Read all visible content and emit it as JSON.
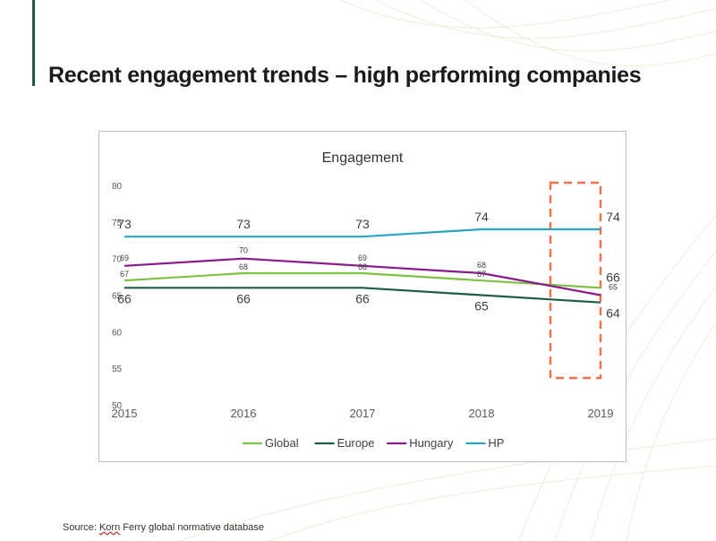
{
  "slide": {
    "title": "Recent engagement trends – high performing companies",
    "source_prefix": "Source: ",
    "source_name": "Korn",
    "source_rest": " Ferry global normative database"
  },
  "colors": {
    "accent": "#1f5a3a",
    "Global": "#7dc242",
    "Europe": "#1e5c4a",
    "Hungary": "#8b1a8b",
    "HP": "#2aa6c4",
    "highlight": "#f4704a"
  },
  "chart_data": {
    "type": "line",
    "title": "Engagement",
    "categories": [
      "2015",
      "2016",
      "2017",
      "2018",
      "2019"
    ],
    "ylim": [
      50,
      80
    ],
    "yticks": [
      50,
      55,
      60,
      65,
      70,
      75,
      80
    ],
    "grid": false,
    "legend": "bottom",
    "series": [
      {
        "name": "Global",
        "values": [
          67,
          68,
          68,
          67,
          66
        ],
        "labels": [
          "67",
          "68",
          "68",
          "67",
          "66"
        ]
      },
      {
        "name": "Europe",
        "values": [
          66,
          66,
          66,
          65,
          64
        ],
        "labels": [
          "66",
          "66",
          "66",
          "65",
          "64"
        ]
      },
      {
        "name": "Hungary",
        "values": [
          69,
          70,
          69,
          68,
          65
        ],
        "labels": [
          "69",
          "70",
          "69",
          "68",
          "65"
        ]
      },
      {
        "name": "HP",
        "values": [
          73,
          73,
          73,
          74,
          74
        ],
        "labels": [
          "73",
          "73",
          "73",
          "74",
          "74"
        ]
      }
    ],
    "highlight_category": "2019"
  }
}
